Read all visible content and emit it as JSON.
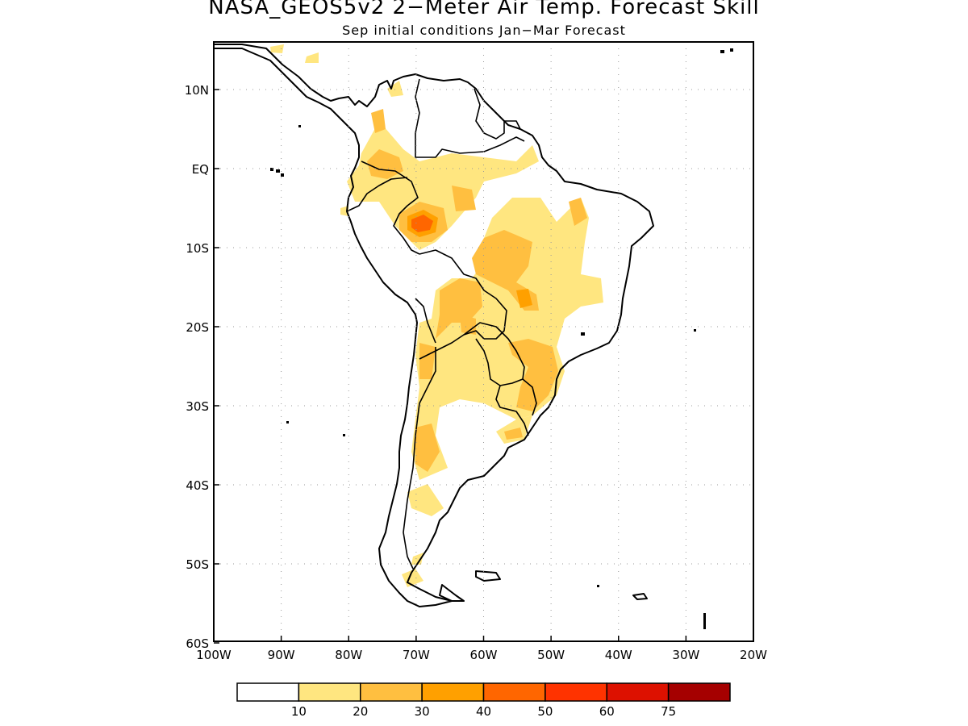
{
  "title": "NASA_GEOS5v2 2−Meter Air Temp. Forecast Skill",
  "subtitle": "Sep initial conditions  Jan−Mar Forecast",
  "lat_ticks": [
    {
      "lat": 10,
      "label": "10N"
    },
    {
      "lat": 0,
      "label": "EQ"
    },
    {
      "lat": -10,
      "label": "10S"
    },
    {
      "lat": -20,
      "label": "20S"
    },
    {
      "lat": -30,
      "label": "30S"
    },
    {
      "lat": -40,
      "label": "40S"
    },
    {
      "lat": -50,
      "label": "50S"
    },
    {
      "lat": -60,
      "label": "60S"
    }
  ],
  "lon_ticks": [
    {
      "lon": -100,
      "label": "100W"
    },
    {
      "lon": -90,
      "label": "90W"
    },
    {
      "lon": -80,
      "label": "80W"
    },
    {
      "lon": -70,
      "label": "70W"
    },
    {
      "lon": -60,
      "label": "60W"
    },
    {
      "lon": -50,
      "label": "50W"
    },
    {
      "lon": -40,
      "label": "40W"
    },
    {
      "lon": -30,
      "label": "30W"
    },
    {
      "lon": -20,
      "label": "20W"
    }
  ],
  "colorbar": {
    "colors": [
      "#ffffff",
      "#ffe680",
      "#ffbf40",
      "#ffa000",
      "#ff6600",
      "#ff3300",
      "#dd1100",
      "#a50000"
    ],
    "labels": [
      "10",
      "20",
      "30",
      "40",
      "50",
      "60",
      "75"
    ]
  }
}
